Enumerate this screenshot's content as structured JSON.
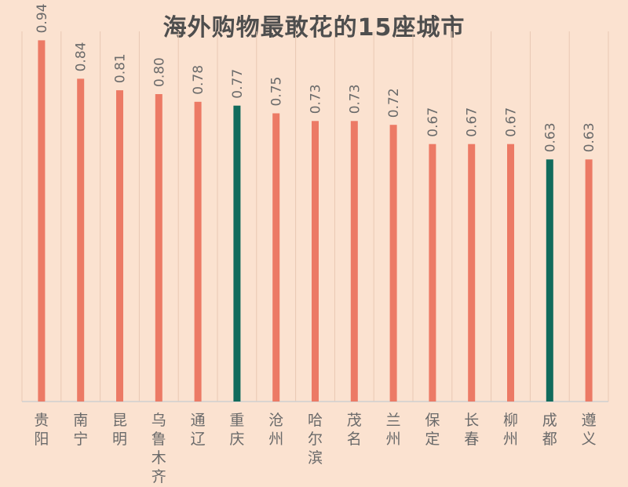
{
  "chart_data": {
    "type": "bar",
    "title": "海外购物最敢花的15座城市",
    "categories": [
      "贵阳",
      "南宁",
      "昆明",
      "乌鲁木齐",
      "通辽",
      "重庆",
      "沧州",
      "哈尔滨",
      "茂名",
      "兰州",
      "保定",
      "长春",
      "柳州",
      "成都",
      "遵义"
    ],
    "values": [
      0.94,
      0.84,
      0.81,
      0.8,
      0.78,
      0.77,
      0.75,
      0.73,
      0.73,
      0.72,
      0.67,
      0.67,
      0.67,
      0.63,
      0.63
    ],
    "value_labels": [
      "0.94",
      "0.84",
      "0.81",
      "0.80",
      "0.78",
      "0.77",
      "0.75",
      "0.73",
      "0.73",
      "0.72",
      "0.67",
      "0.67",
      "0.67",
      "0.63",
      "0.63"
    ],
    "highlighted": [
      "重庆",
      "成都"
    ],
    "ylim": [
      0,
      1.0
    ],
    "xlabel": "",
    "ylabel": "",
    "grid": "vertical",
    "colors": {
      "bar": "#ec7a65",
      "highlight": "#116b5c",
      "grid": "#e9c8b3",
      "axis": "#cfcfcf",
      "text": "#6a6a6a"
    }
  }
}
